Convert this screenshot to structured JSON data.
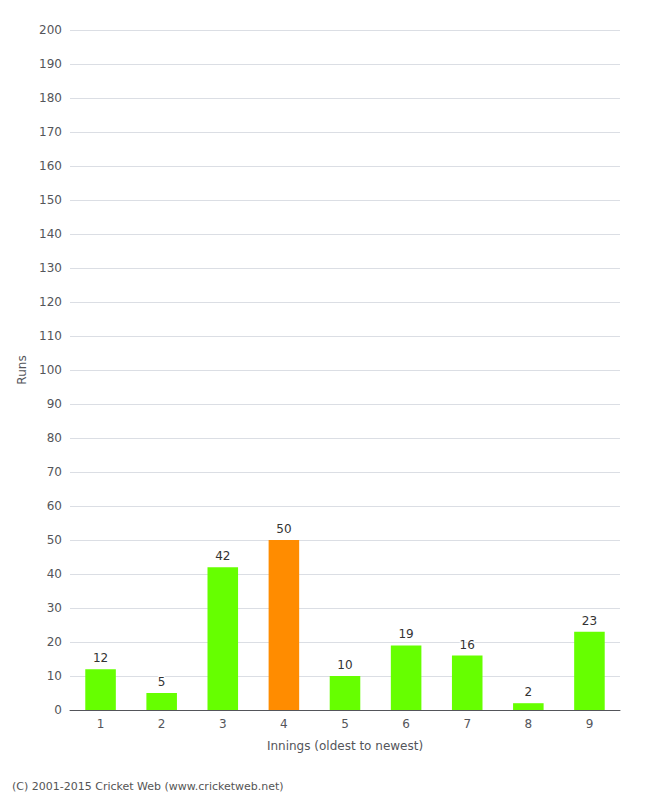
{
  "chart_data": {
    "type": "bar",
    "xlabel": "Innings (oldest to newest)",
    "ylabel": "Runs",
    "categories": [
      "1",
      "2",
      "3",
      "4",
      "5",
      "6",
      "7",
      "8",
      "9"
    ],
    "values": [
      12,
      5,
      42,
      50,
      10,
      19,
      16,
      2,
      23
    ],
    "colors": [
      "#66ff00",
      "#66ff00",
      "#66ff00",
      "#ff8c00",
      "#66ff00",
      "#66ff00",
      "#66ff00",
      "#66ff00",
      "#66ff00"
    ],
    "ylim": [
      0,
      200
    ],
    "yticks": [
      0,
      10,
      20,
      30,
      40,
      50,
      60,
      70,
      80,
      90,
      100,
      110,
      120,
      130,
      140,
      150,
      160,
      170,
      180,
      190,
      200
    ],
    "grid": true,
    "data_labels": true,
    "annotations": [
      "(C) 2001-2015 Cricket Web (www.cricketweb.net)"
    ]
  }
}
